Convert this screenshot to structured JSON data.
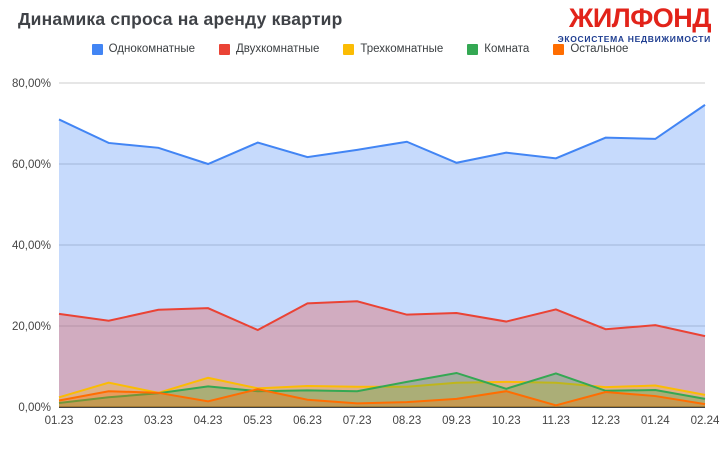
{
  "header": {
    "title": "Динамика спроса на аренду квартир",
    "logo": {
      "name": "ЖИЛФОНД",
      "tagline": "ЭКОСИСТЕМА НЕДВИЖИМОСТИ",
      "name_color": "#e2231a",
      "tagline_color": "#1f3e91"
    }
  },
  "chart_data": {
    "type": "area",
    "title": "Динамика спроса на аренду квартир",
    "stacked": false,
    "grid": true,
    "legend_position": "top",
    "area_opacity": 0.3,
    "grid_color": "#cccccc",
    "baseline_color": "#424242",
    "label_color": "#454545",
    "categories": [
      "01.23",
      "02.23",
      "03.23",
      "04.23",
      "05.23",
      "06.23",
      "07.23",
      "08.23",
      "09.23",
      "10.23",
      "11.23",
      "12.23",
      "01.24",
      "02.24"
    ],
    "series": [
      {
        "name": "Однокомнатные",
        "color": "#4285F4",
        "values": [
          71.0,
          65.2,
          64.0,
          60.0,
          65.3,
          61.7,
          63.5,
          65.5,
          60.3,
          62.8,
          61.4,
          66.5,
          66.2,
          74.6
        ]
      },
      {
        "name": "Двухкомнатные",
        "color": "#EA4335",
        "values": [
          23.0,
          21.3,
          24.0,
          24.4,
          19.0,
          25.6,
          26.1,
          22.8,
          23.2,
          21.1,
          24.1,
          19.2,
          20.2,
          17.5
        ]
      },
      {
        "name": "Трехкомнатные",
        "color": "#FBBC04",
        "values": [
          2.4,
          6.0,
          3.5,
          7.2,
          4.6,
          5.2,
          5.0,
          5.0,
          6.0,
          6.2,
          6.0,
          4.9,
          5.3,
          3.0
        ]
      },
      {
        "name": "Комната",
        "color": "#34A853",
        "values": [
          1.0,
          2.4,
          3.4,
          5.1,
          3.9,
          4.1,
          3.9,
          6.2,
          8.4,
          4.5,
          8.3,
          4.0,
          4.2,
          2.0
        ]
      },
      {
        "name": "Остальное",
        "color": "#FF6D01",
        "values": [
          1.6,
          3.9,
          3.5,
          1.4,
          4.4,
          1.8,
          0.9,
          1.2,
          2.0,
          3.9,
          0.4,
          3.7,
          2.7,
          0.7
        ]
      }
    ],
    "y_axis": {
      "min": 0,
      "max": 80,
      "tick_values": [
        0,
        20,
        40,
        60,
        80
      ],
      "tick_labels": [
        "0,00%",
        "20,00%",
        "40,00%",
        "60,00%",
        "80,00%"
      ]
    },
    "x_axis": {
      "tick_labels": [
        "01.23",
        "02.23",
        "03.23",
        "04.23",
        "05.23",
        "06.23",
        "07.23",
        "08.23",
        "09.23",
        "10.23",
        "11.23",
        "12.23",
        "01.24",
        "02.24"
      ]
    }
  }
}
